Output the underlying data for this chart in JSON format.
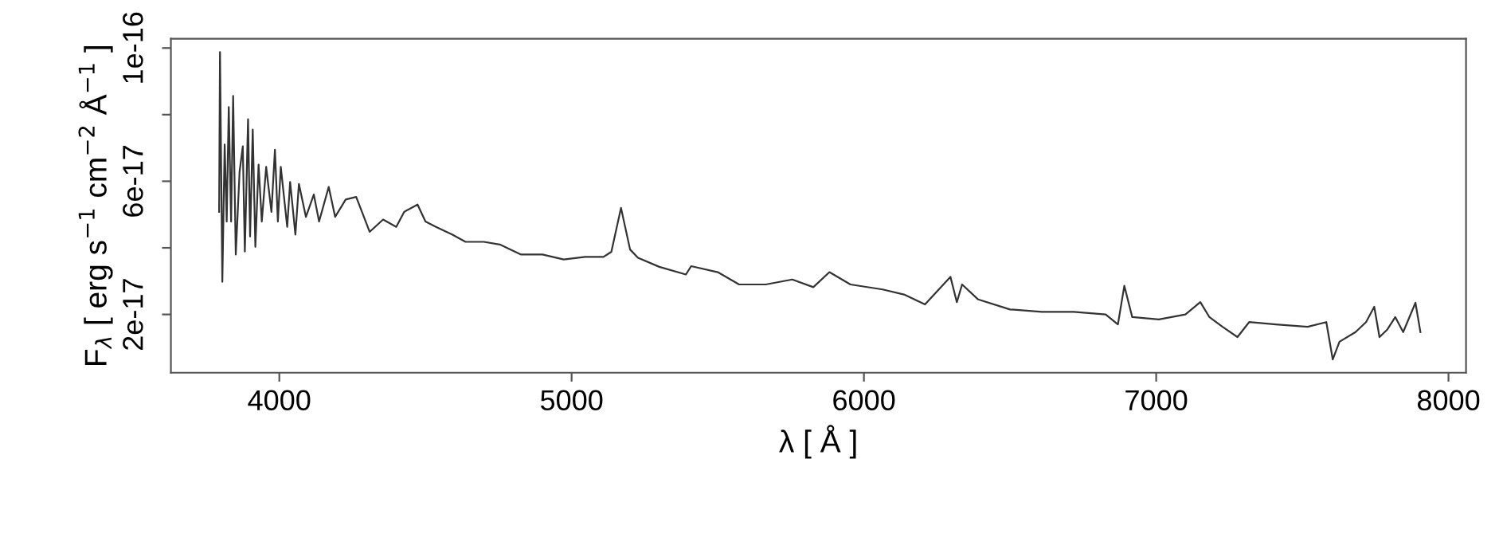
{
  "chart_data": {
    "type": "line",
    "xlabel": "λ [ Å ]",
    "ylabel": "F$_{λ}$ [ erg s$^{−1}$ cm$^{−2}$ Å$^{−1}$ ]",
    "series": [
      {
        "color": "#333333",
        "x": [
          3794,
          3797,
          3805,
          3813,
          3820,
          3827,
          3835,
          3842,
          3851,
          3864,
          3875,
          3882,
          3893,
          3900,
          3909,
          3918,
          3929,
          3940,
          3955,
          3973,
          3985,
          3995,
          4005,
          4027,
          4037,
          4055,
          4067,
          4091,
          4118,
          4136,
          4169,
          4191,
          4227,
          4263,
          4309,
          4355,
          4400,
          4427,
          4473,
          4500,
          4536,
          4591,
          4637,
          4700,
          4754,
          4827,
          4900,
          4973,
          5046,
          5109,
          5136,
          5169,
          5200,
          5227,
          5300,
          5391,
          5409,
          5500,
          5573,
          5664,
          5755,
          5827,
          5882,
          5954,
          6064,
          6137,
          6209,
          6296,
          6318,
          6336,
          6391,
          6500,
          6609,
          6718,
          6827,
          6869,
          6891,
          6918,
          7009,
          7100,
          7151,
          7182,
          7227,
          7278,
          7318,
          7409,
          7518,
          7582,
          7604,
          7627,
          7682,
          7718,
          7746,
          7764,
          7791,
          7818,
          7845,
          7887,
          7904
        ],
        "values": [
          5.08e-17,
          9.88e-17,
          2.98e-17,
          7.1e-17,
          4.79e-17,
          8.23e-17,
          4.79e-17,
          8.56e-17,
          3.8e-17,
          6.28e-17,
          7.05e-17,
          3.89e-17,
          7.86e-17,
          4.34e-17,
          7.55e-17,
          4.03e-17,
          6.5e-17,
          4.79e-17,
          6.43e-17,
          5.08e-17,
          6.95e-17,
          4.79e-17,
          6.43e-17,
          4.63e-17,
          5.98e-17,
          4.4e-17,
          5.92e-17,
          4.93e-17,
          5.6e-17,
          4.79e-17,
          5.83e-17,
          4.93e-17,
          5.45e-17,
          5.53e-17,
          4.48e-17,
          4.85e-17,
          4.63e-17,
          5.08e-17,
          5.3e-17,
          4.79e-17,
          4.63e-17,
          4.4e-17,
          4.18e-17,
          4.18e-17,
          4.1e-17,
          3.8e-17,
          3.8e-17,
          3.65e-17,
          3.73e-17,
          3.73e-17,
          3.88e-17,
          5.2e-17,
          3.95e-17,
          3.7e-17,
          3.43e-17,
          3.2e-17,
          3.45e-17,
          3.27e-17,
          2.9e-17,
          2.9e-17,
          3.05e-17,
          2.82e-17,
          3.27e-17,
          2.9e-17,
          2.75e-17,
          2.6e-17,
          2.3e-17,
          3.13e-17,
          2.37e-17,
          2.9e-17,
          2.45e-17,
          2.15e-17,
          2.08e-17,
          2.08e-17,
          2e-17,
          1.7e-17,
          2.86e-17,
          1.92e-17,
          1.85e-17,
          2e-17,
          2.37e-17,
          1.92e-17,
          1.63e-17,
          1.32e-17,
          1.77e-17,
          1.7e-17,
          1.63e-17,
          1.77e-17,
          6.5e-18,
          1.18e-17,
          1.47e-17,
          1.77e-17,
          2.23e-17,
          1.32e-17,
          1.55e-17,
          1.92e-17,
          1.47e-17,
          2.35e-17,
          1.47e-17
        ]
      }
    ],
    "xlim": [
      3629,
      8060
    ],
    "xticks": [
      4000,
      5000,
      6000,
      7000,
      8000
    ],
    "ylim": [
      2.5e-18,
      1.028e-16
    ],
    "yticks": [
      2e-17,
      {
        "value": 4e-17,
        "label": null
      },
      6e-17,
      {
        "value": 8e-17,
        "label": null
      },
      1e-16
    ],
    "grid": false,
    "legend": false,
    "marker": "none",
    "line_style": "solid"
  }
}
